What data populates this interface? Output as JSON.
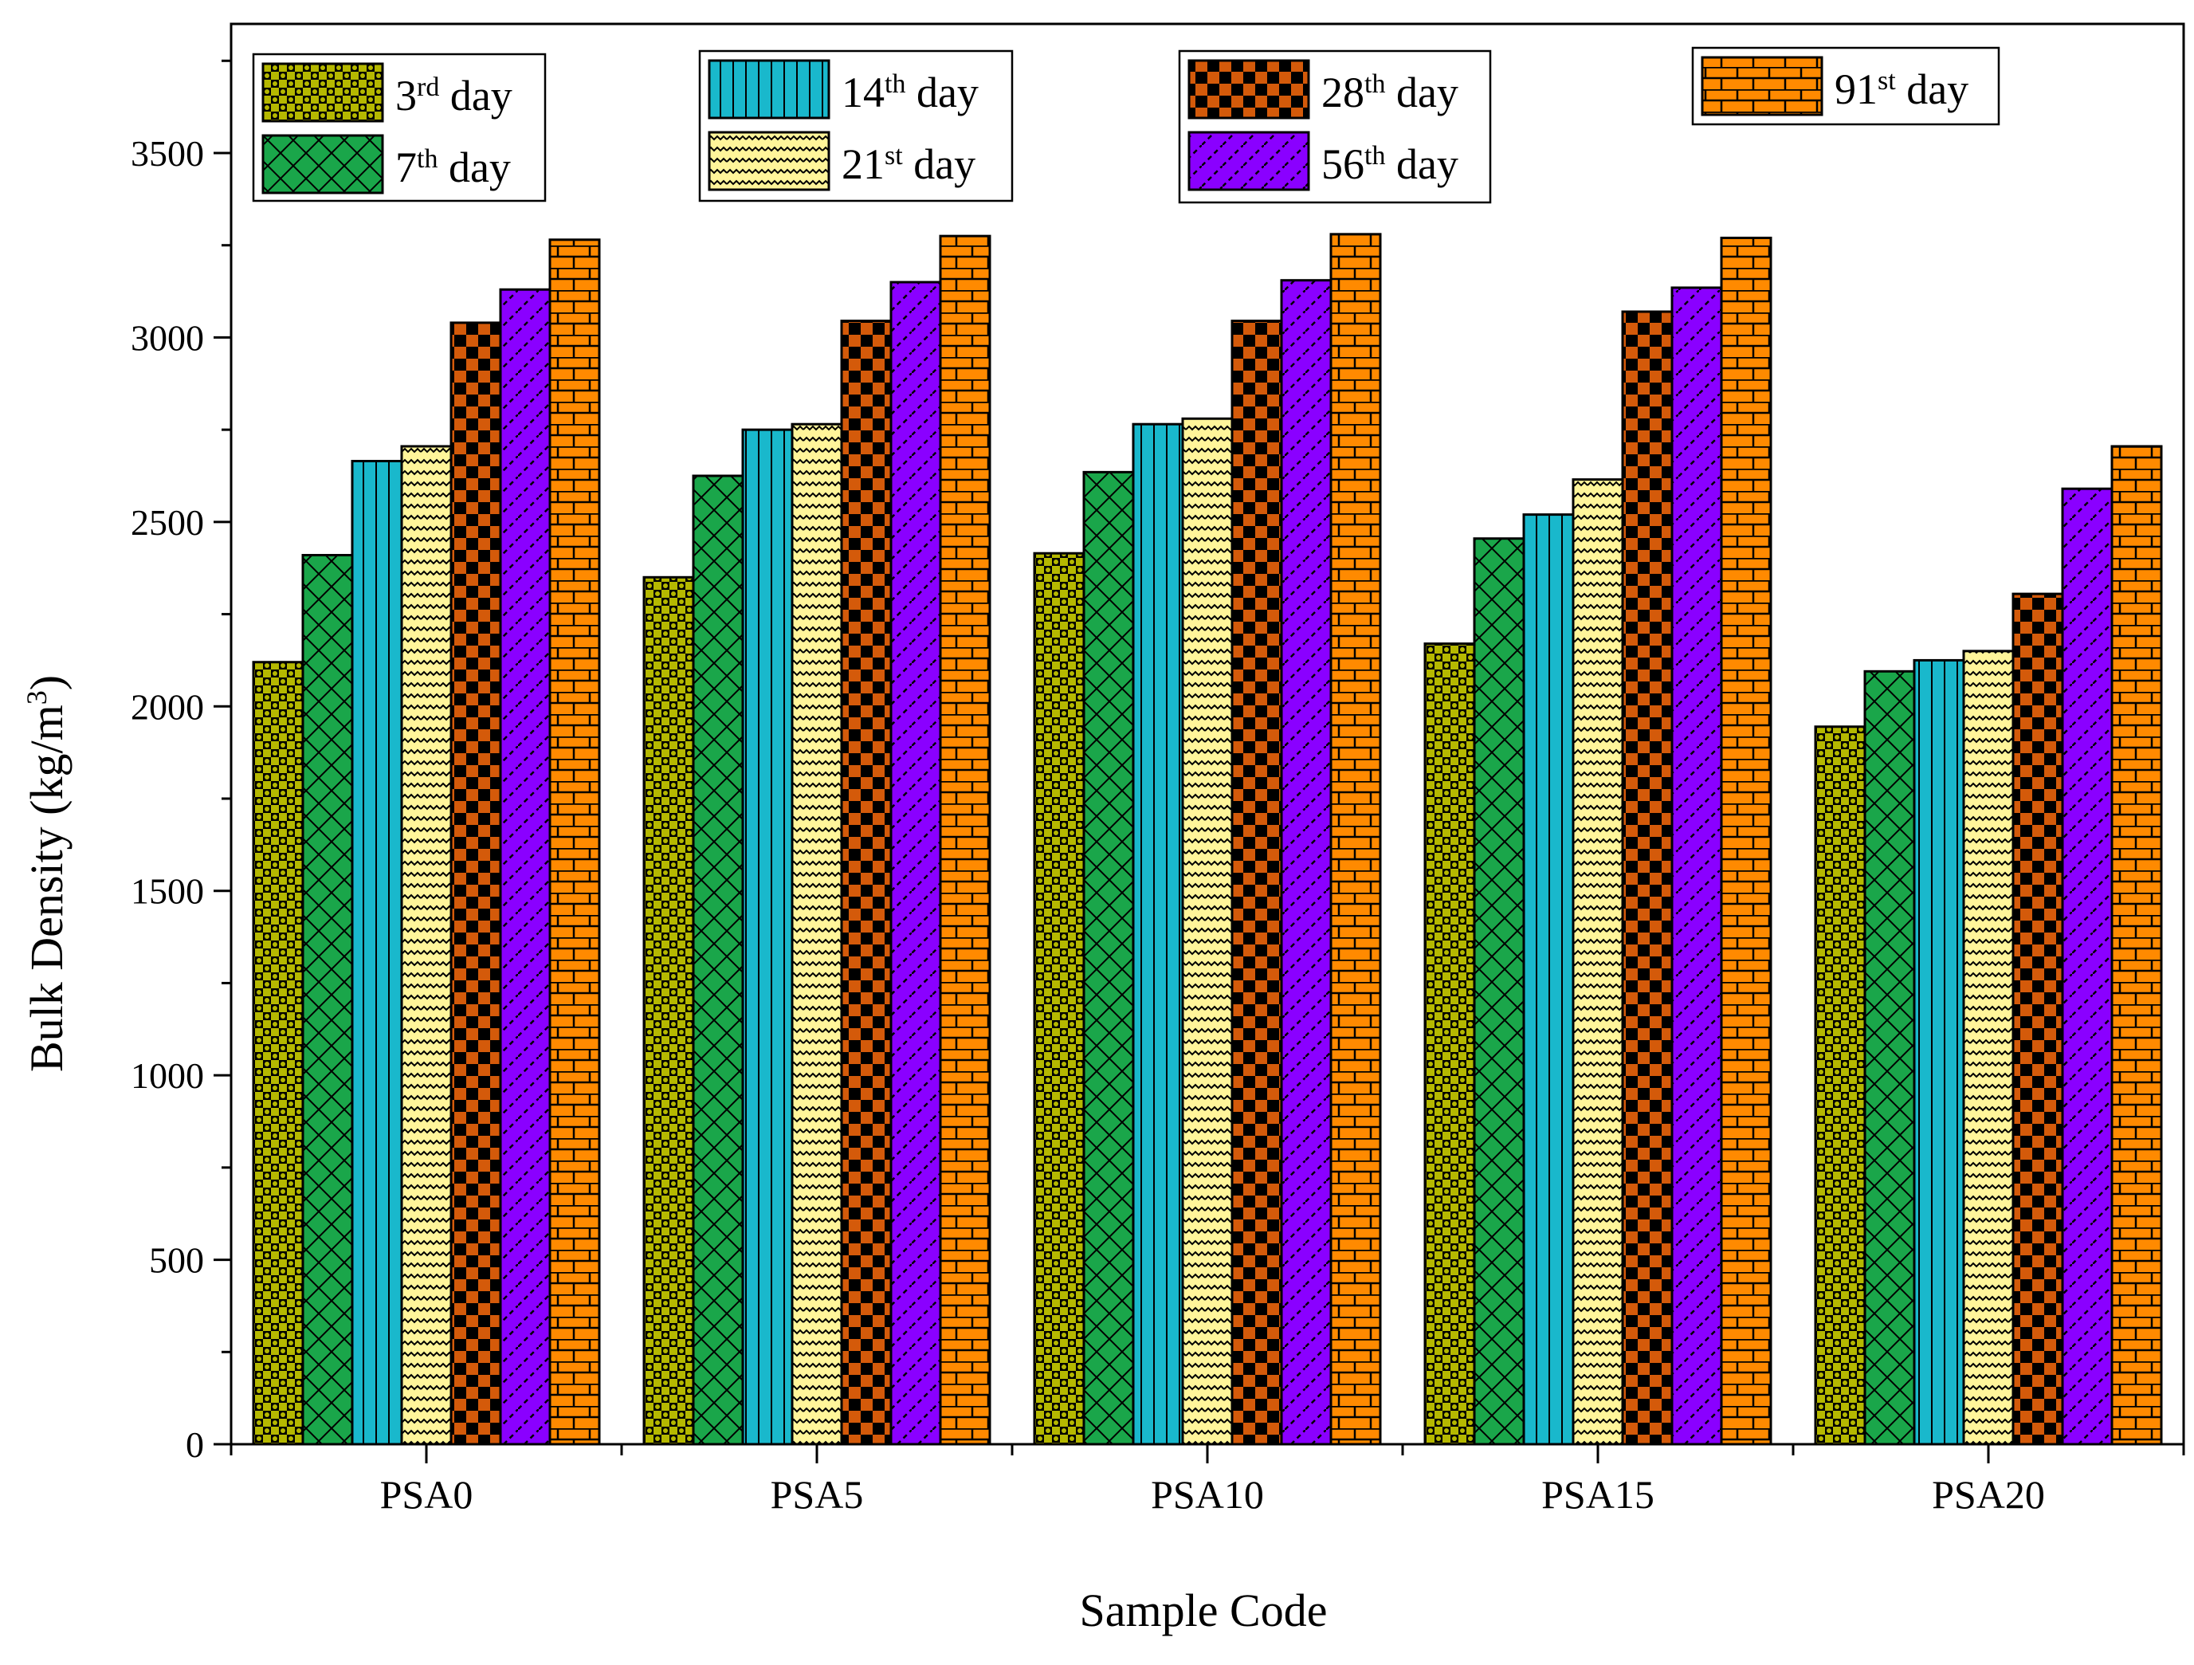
{
  "chart_data": {
    "type": "bar",
    "title": "",
    "xlabel": "Sample Code",
    "ylabel": {
      "main": "Bulk Density (kg/m",
      "sup": "3",
      "close": ")"
    },
    "ylim": [
      0,
      3850
    ],
    "yticks": [
      0,
      500,
      1000,
      1500,
      2000,
      2500,
      3000,
      3500
    ],
    "categories": [
      "PSA0",
      "PSA5",
      "PSA10",
      "PSA15",
      "PSA20"
    ],
    "series": [
      {
        "name": "3rd day",
        "num": "3",
        "sup": "rd",
        "tail": " day",
        "color": "#b5b800",
        "pattern": "checker-circles",
        "values": [
          2120,
          2350,
          2415,
          2170,
          1945
        ]
      },
      {
        "name": "7th day",
        "num": "7",
        "sup": "th",
        "tail": " day",
        "color": "#1aa64a",
        "pattern": "crosshatch",
        "values": [
          2410,
          2625,
          2635,
          2455,
          2095
        ]
      },
      {
        "name": "14th day",
        "num": "14",
        "sup": "th",
        "tail": " day",
        "color": "#19b8cc",
        "pattern": "vertical-lines",
        "values": [
          2665,
          2750,
          2765,
          2520,
          2125
        ]
      },
      {
        "name": "21st day",
        "num": "21",
        "sup": "st",
        "tail": " day",
        "color": "#fff59a",
        "pattern": "wavy",
        "values": [
          2705,
          2765,
          2780,
          2615,
          2150
        ]
      },
      {
        "name": "28th day",
        "num": "28",
        "sup": "th",
        "tail": " day",
        "color": "#d45a0a",
        "pattern": "checkerboard",
        "values": [
          3040,
          3045,
          3045,
          3070,
          2305
        ]
      },
      {
        "name": "56th day",
        "num": "56",
        "sup": "th",
        "tail": " day",
        "color": "#8a00ff",
        "pattern": "diagonal-dashes",
        "values": [
          3130,
          3150,
          3155,
          3135,
          2590
        ]
      },
      {
        "name": "91st day",
        "num": "91",
        "sup": "st",
        "tail": " day",
        "color": "#ff8a00",
        "pattern": "brick",
        "values": [
          3265,
          3275,
          3280,
          3270,
          2705
        ]
      }
    ]
  }
}
